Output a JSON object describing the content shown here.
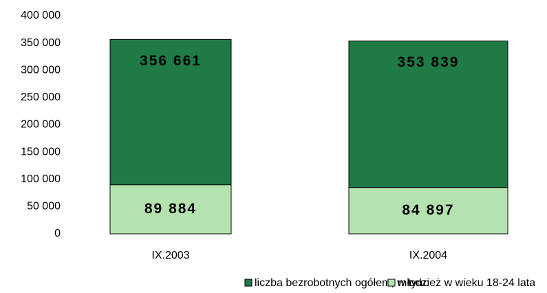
{
  "chart_data": {
    "type": "overlapping_bar",
    "categories": [
      "IX.2003",
      "IX.2004"
    ],
    "series": [
      {
        "name": "liczba bezrobotnych ogółem, w tym:",
        "color": "#1f7a45",
        "values": [
          356661,
          353839
        ],
        "value_labels": [
          "356 661",
          "353 839"
        ]
      },
      {
        "name": "młodzież w wieku 18-24 lata",
        "color": "#b5e3b0",
        "values": [
          89884,
          84897
        ],
        "value_labels": [
          "89 884",
          "84 897"
        ]
      }
    ],
    "ylim": [
      0,
      400000
    ],
    "yticks": [
      0,
      {
        "value": 50000,
        "label": "50 000"
      },
      {
        "value": 100000,
        "label": "100 000"
      },
      {
        "value": 150000,
        "label": "150 000"
      },
      {
        "value": 200000,
        "label": "200 000"
      },
      {
        "value": 250000,
        "label": "250 000"
      },
      {
        "value": 300000,
        "label": "300 000"
      },
      {
        "value": 350000,
        "label": "350 000"
      },
      {
        "value": 400000,
        "label": "400 000"
      }
    ],
    "legend": "bottom"
  }
}
